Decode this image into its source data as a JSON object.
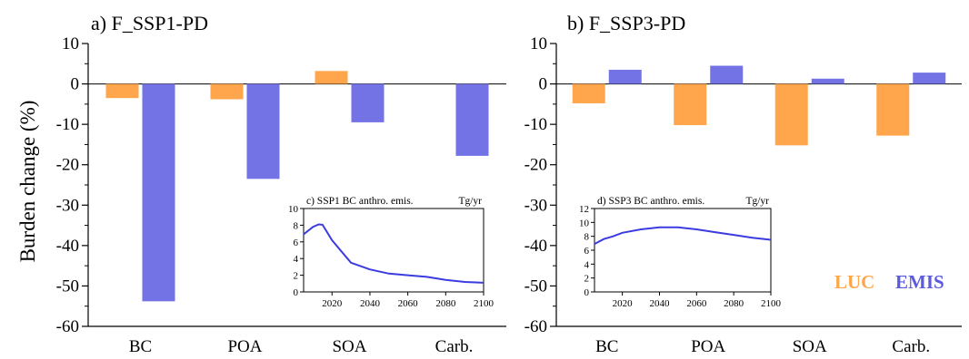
{
  "figure": {
    "ylabel": "Burden change (%)",
    "legend": [
      {
        "label": "LUC",
        "color": "#FFA64D"
      },
      {
        "label": "EMIS",
        "color": "#7373E6"
      }
    ],
    "colors": {
      "luc": "#FFA64D",
      "emis": "#7373E6",
      "inset_line": "#3B3BE0"
    }
  },
  "chart_data": [
    {
      "type": "bar",
      "title": "a) F_SSP1-PD",
      "categories": [
        "BC",
        "POA",
        "SOA",
        "Carb."
      ],
      "series": [
        {
          "name": "LUC",
          "values": [
            -3.5,
            -3.8,
            3.2,
            0
          ]
        },
        {
          "name": "EMIS",
          "values": [
            -53.8,
            -23.5,
            -9.5,
            -17.8
          ]
        }
      ],
      "ylim": [
        -60,
        10
      ],
      "yticks": [
        10,
        0,
        -10,
        -20,
        -30,
        -40,
        -50,
        -60
      ],
      "ylabel": "Burden change (%)"
    },
    {
      "type": "bar",
      "title": "b) F_SSP3-PD",
      "categories": [
        "BC",
        "POA",
        "SOA",
        "Carb."
      ],
      "series": [
        {
          "name": "LUC",
          "values": [
            -4.8,
            -10.2,
            -15.2,
            -12.8
          ]
        },
        {
          "name": "EMIS",
          "values": [
            3.5,
            4.5,
            1.3,
            2.8
          ]
        }
      ],
      "ylim": [
        -60,
        10
      ],
      "yticks": [
        10,
        0,
        -10,
        -20,
        -30,
        -40,
        -50,
        -60
      ]
    },
    {
      "type": "line",
      "title": "c) SSP1 BC anthro. emis.",
      "unit": "Tg/yr",
      "x": [
        2005,
        2010,
        2013,
        2015,
        2020,
        2030,
        2040,
        2050,
        2060,
        2070,
        2080,
        2090,
        2100
      ],
      "y": [
        6.9,
        7.8,
        8.1,
        8.05,
        6.2,
        3.5,
        2.7,
        2.2,
        2.0,
        1.8,
        1.45,
        1.2,
        1.1
      ],
      "xlim": [
        2005,
        2100
      ],
      "ylim": [
        0,
        10
      ],
      "xticks": [
        2020,
        2040,
        2060,
        2080,
        2100
      ],
      "yticks": [
        0,
        2,
        4,
        6,
        8,
        10
      ]
    },
    {
      "type": "line",
      "title": "d) SSP3 BC anthro. emis.",
      "unit": "Tg/yr",
      "x": [
        2005,
        2010,
        2015,
        2020,
        2030,
        2040,
        2050,
        2060,
        2070,
        2080,
        2090,
        2100
      ],
      "y": [
        6.9,
        7.6,
        8.0,
        8.5,
        9.0,
        9.3,
        9.3,
        9.0,
        8.6,
        8.2,
        7.8,
        7.5
      ],
      "xlim": [
        2005,
        2100
      ],
      "ylim": [
        0,
        12
      ],
      "xticks": [
        2020,
        2040,
        2060,
        2080,
        2100
      ],
      "yticks": [
        0,
        2,
        4,
        6,
        8,
        10,
        12
      ]
    }
  ]
}
